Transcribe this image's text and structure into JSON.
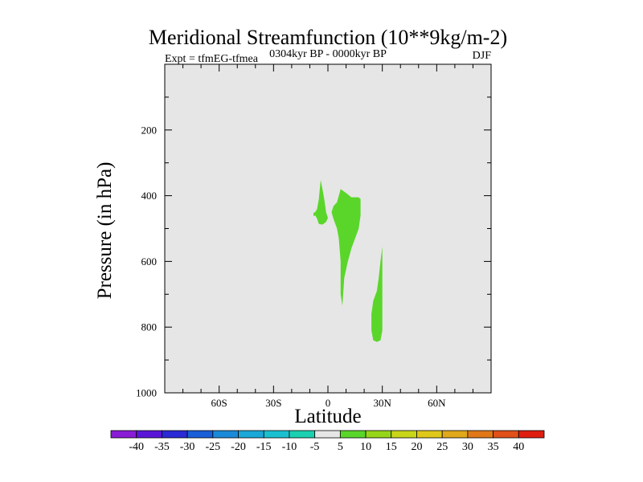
{
  "chart_data": {
    "type": "contour",
    "title": "Meridional Streamfunction (10**9kg/m-2)",
    "subtitle": "0304kyr BP - 0000kyr BP",
    "left_label": "Expt = tfmEG-tfmea",
    "right_label": "DJF",
    "xlabel": "Latitude",
    "ylabel": "Pressure (in hPa)",
    "xlim": [
      -90,
      90
    ],
    "ylim": [
      0,
      1000
    ],
    "x_ticks": [
      {
        "value": -60,
        "label": "60S"
      },
      {
        "value": -30,
        "label": "30S"
      },
      {
        "value": 0,
        "label": "0"
      },
      {
        "value": 30,
        "label": "30N"
      },
      {
        "value": 60,
        "label": "60N"
      }
    ],
    "y_ticks": [
      {
        "value": 200,
        "label": "200"
      },
      {
        "value": 400,
        "label": "400"
      },
      {
        "value": 600,
        "label": "600"
      },
      {
        "value": 800,
        "label": "800"
      },
      {
        "value": 1000,
        "label": "1000"
      }
    ],
    "y_minor_ticks": [
      100,
      300,
      500,
      700,
      900
    ],
    "x_minor_ticks": [
      -80,
      -70,
      -50,
      -40,
      -20,
      -10,
      10,
      20,
      40,
      50,
      70,
      80
    ],
    "background_color": "#e6e6e6",
    "filled_regions": [
      {
        "level": "5 to 10",
        "color": "#5ad62a",
        "points": [
          [
            -4,
            352
          ],
          [
            -3,
            380
          ],
          [
            -2,
            412
          ],
          [
            -1,
            450
          ],
          [
            0,
            468
          ],
          [
            -1,
            480
          ],
          [
            -3,
            488
          ],
          [
            -5,
            486
          ],
          [
            -6,
            470
          ],
          [
            -7,
            460
          ],
          [
            -8,
            462
          ],
          [
            -8,
            452
          ],
          [
            -7,
            450
          ],
          [
            -6,
            440
          ],
          [
            -5,
            410
          ]
        ]
      },
      {
        "level": "5 to 10",
        "color": "#5ad62a",
        "points": [
          [
            7,
            380
          ],
          [
            10,
            392
          ],
          [
            13,
            405
          ],
          [
            17,
            405
          ],
          [
            18,
            410
          ],
          [
            18,
            460
          ],
          [
            17,
            500
          ],
          [
            15,
            530
          ],
          [
            13,
            560
          ],
          [
            11,
            600
          ],
          [
            9,
            650
          ],
          [
            8,
            735
          ],
          [
            7,
            700
          ],
          [
            7,
            600
          ],
          [
            6,
            530
          ],
          [
            5,
            500
          ],
          [
            3,
            470
          ],
          [
            2,
            450
          ],
          [
            3,
            432
          ],
          [
            5,
            420
          ]
        ]
      },
      {
        "level": "5 to 10",
        "color": "#5ad62a",
        "points": [
          [
            30,
            555
          ],
          [
            30,
            600
          ],
          [
            30,
            650
          ],
          [
            30,
            700
          ],
          [
            30,
            760
          ],
          [
            30,
            810
          ],
          [
            29,
            840
          ],
          [
            27,
            845
          ],
          [
            25,
            840
          ],
          [
            24,
            810
          ],
          [
            24,
            760
          ],
          [
            25,
            720
          ],
          [
            27,
            690
          ],
          [
            28,
            650
          ],
          [
            29,
            600
          ]
        ]
      }
    ],
    "colorbar": {
      "labels": [
        "-40",
        "-35",
        "-30",
        "-25",
        "-20",
        "-15",
        "-10",
        "-5",
        "5",
        "10",
        "15",
        "20",
        "25",
        "30",
        "35",
        "40"
      ],
      "colors": [
        "#8a1cd6",
        "#5a16d8",
        "#2a2ad6",
        "#1a5ed8",
        "#1a8ad8",
        "#1aa8d8",
        "#1ac0d0",
        "#1ad0b0",
        "#e6e6e6",
        "#5ad62a",
        "#96d61a",
        "#c8d61a",
        "#e0c81a",
        "#e0a81a",
        "#e07818",
        "#e05018",
        "#e01e10"
      ]
    }
  }
}
